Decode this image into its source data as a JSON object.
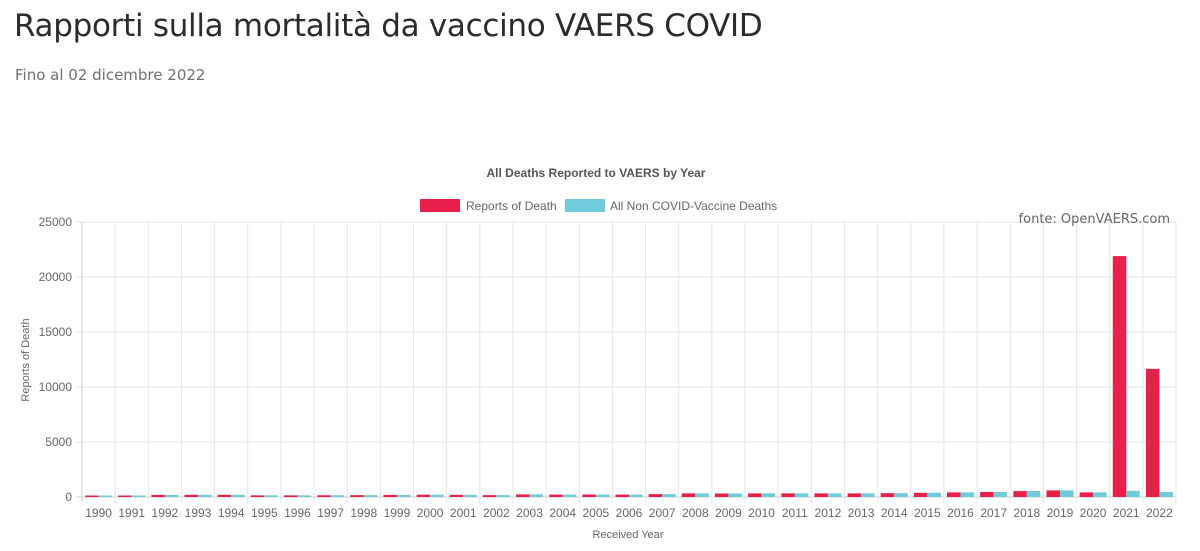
{
  "page": {
    "title": "Rapporti sulla mortalità da vaccino VAERS COVID",
    "subtitle": "Fino al 02 dicembre 2022",
    "source": "fonte: OpenVAERS.com"
  },
  "chart_data": {
    "type": "bar",
    "title": "All Deaths Reported to VAERS by Year",
    "xlabel": "Received Year",
    "ylabel": "Reports of Death",
    "ylim": [
      0,
      25000
    ],
    "yticks": [
      0,
      5000,
      10000,
      15000,
      20000,
      25000
    ],
    "grid": true,
    "legend_position": "top-center",
    "categories": [
      "1990",
      "1991",
      "1992",
      "1993",
      "1994",
      "1995",
      "1996",
      "1997",
      "1998",
      "1999",
      "2000",
      "2001",
      "2002",
      "2003",
      "2004",
      "2005",
      "2006",
      "2007",
      "2008",
      "2009",
      "2010",
      "2011",
      "2012",
      "2013",
      "2014",
      "2015",
      "2016",
      "2017",
      "2018",
      "2019",
      "2020",
      "2021",
      "2022"
    ],
    "series": [
      {
        "name": "Reports of Death",
        "color": "#e8204a",
        "values": [
          70,
          130,
          190,
          200,
          200,
          150,
          150,
          160,
          170,
          190,
          210,
          200,
          170,
          240,
          220,
          230,
          220,
          260,
          330,
          320,
          330,
          330,
          330,
          330,
          350,
          380,
          420,
          460,
          540,
          600,
          420,
          21900,
          11650
        ]
      },
      {
        "name": "All Non COVID-Vaccine Deaths",
        "color": "#6fcbd9",
        "values": [
          70,
          130,
          190,
          200,
          200,
          150,
          150,
          160,
          170,
          190,
          210,
          200,
          170,
          240,
          220,
          230,
          220,
          260,
          330,
          320,
          330,
          330,
          330,
          330,
          350,
          380,
          420,
          460,
          540,
          600,
          420,
          560,
          460
        ]
      }
    ]
  }
}
